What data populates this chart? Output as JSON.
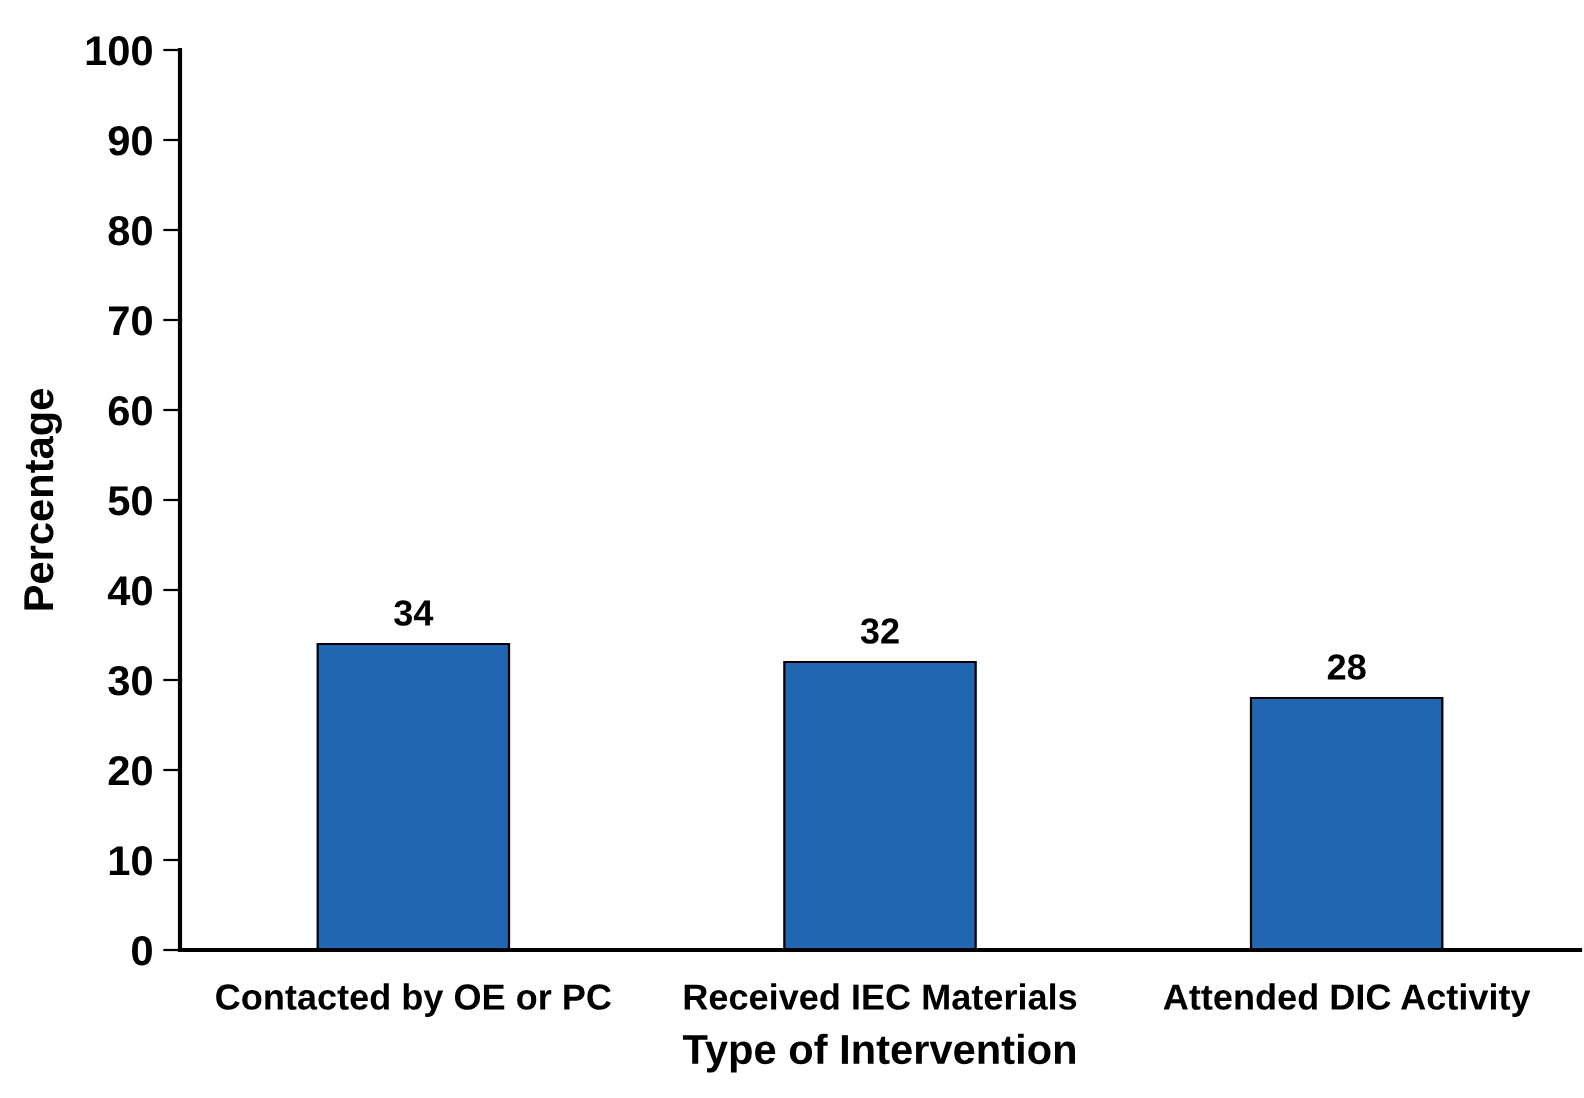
{
  "chart_data": {
    "type": "bar",
    "xlabel": "Type of Intervention",
    "ylabel": "Percentage",
    "categories": [
      "Contacted by OE or PC",
      "Received IEC Materials",
      "Attended DIC Activity"
    ],
    "values": [
      34,
      32,
      28
    ],
    "color": "#2166b0",
    "ylim": [
      0,
      100
    ],
    "yticks": [
      0,
      10,
      20,
      30,
      40,
      50,
      60,
      70,
      80,
      90,
      100
    ],
    "data_labels": true,
    "grid": false,
    "legend": false
  }
}
